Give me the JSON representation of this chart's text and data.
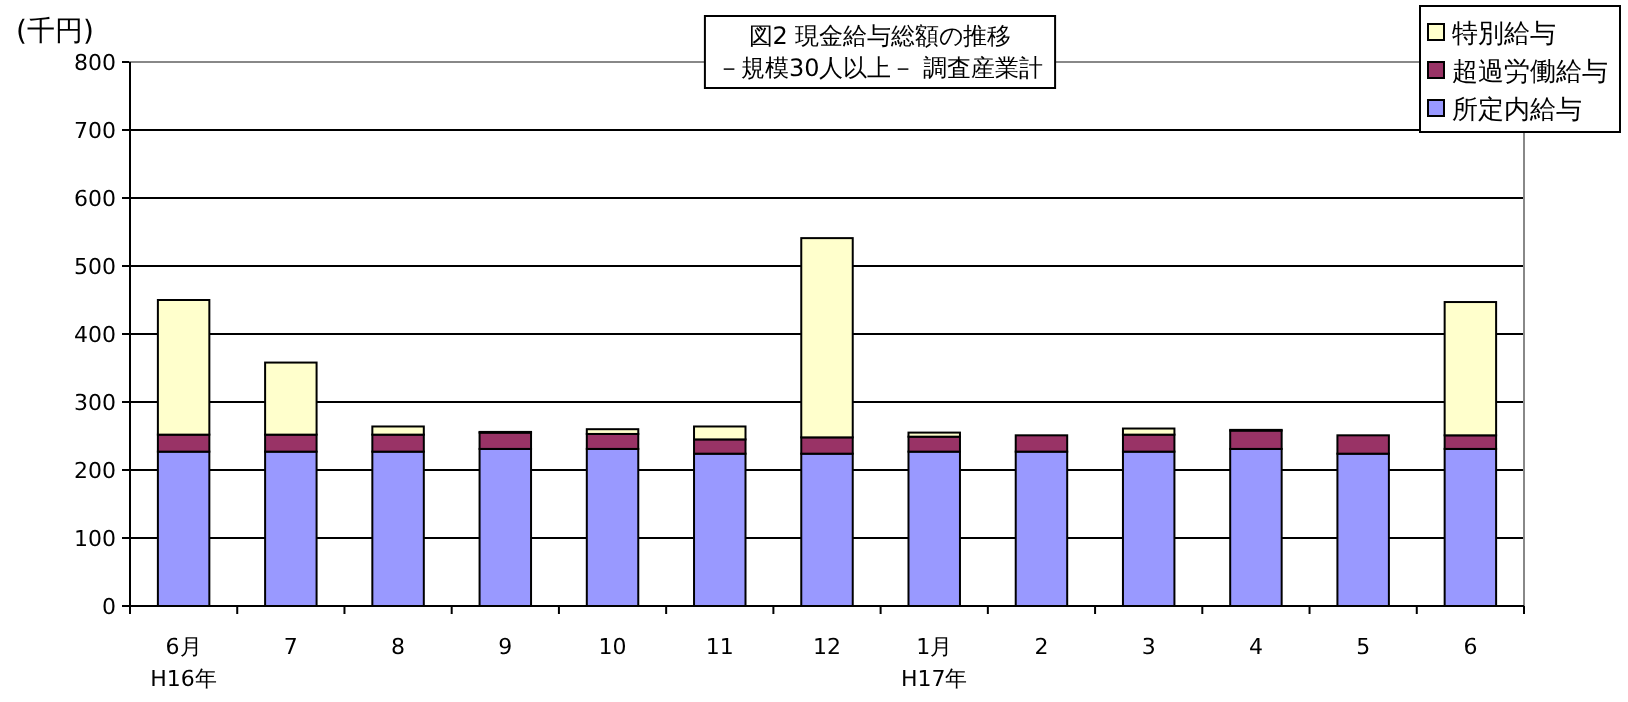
{
  "chart_data": {
    "type": "bar",
    "stacked": true,
    "title": "図2  現金給与総額の推移",
    "subtitle": "－規模30人以上－  調査産業計",
    "ylabel": "(千円)",
    "categories": [
      "6月\nH16年",
      "7",
      "8",
      "9",
      "10",
      "11",
      "12",
      "1月\nH17年",
      "2",
      "3",
      "4",
      "5",
      "6"
    ],
    "series": [
      {
        "name": "所定内給与",
        "color": "#9999ff",
        "values": [
          227,
          227,
          227,
          231,
          231,
          224,
          224,
          227,
          227,
          227,
          231,
          224,
          231
        ]
      },
      {
        "name": "超過労働給与",
        "color": "#993366",
        "values": [
          25,
          25,
          25,
          24,
          22,
          21,
          24,
          22,
          24,
          25,
          27,
          27,
          20
        ]
      },
      {
        "name": "特別給与",
        "color": "#ffffcc",
        "values": [
          198,
          106,
          12,
          1,
          7,
          19,
          293,
          6,
          0,
          9,
          1,
          0,
          196
        ]
      }
    ],
    "ylim": [
      0,
      800
    ],
    "yticks": [
      0,
      100,
      200,
      300,
      400,
      500,
      600,
      700,
      800
    ],
    "grid": "y",
    "legend": "top right"
  }
}
